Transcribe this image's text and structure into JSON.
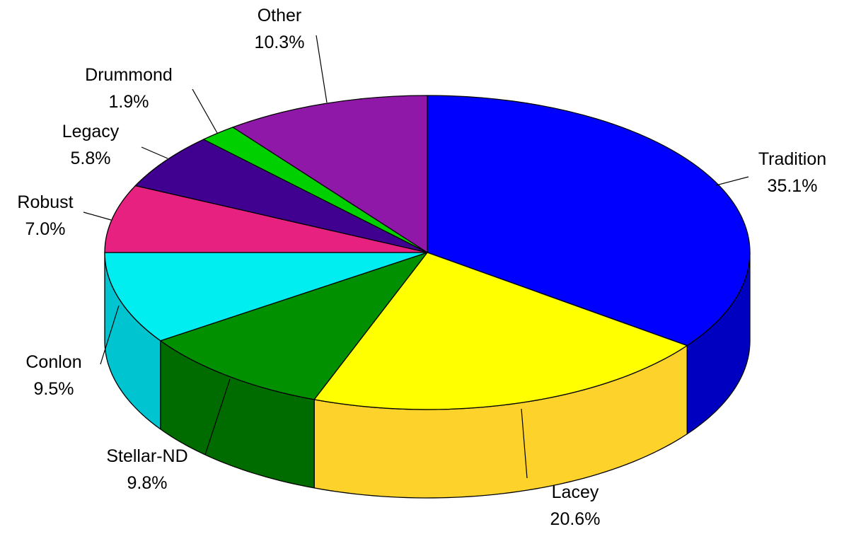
{
  "chart_data": {
    "type": "pie",
    "style": "3d",
    "start": "12 o'clock, clockwise",
    "slices": [
      {
        "name": "Tradition",
        "pct_label": "35.1%",
        "value": 35.1,
        "color": "#0000ff",
        "side_color": "#0000c0"
      },
      {
        "name": "Lacey",
        "pct_label": "20.6%",
        "value": 20.6,
        "color": "#ffff00",
        "side_color": "#fdd22b"
      },
      {
        "name": "Stellar-ND",
        "pct_label": "9.8%",
        "value": 9.8,
        "color": "#009000",
        "side_color": "#006c00"
      },
      {
        "name": "Conlon",
        "pct_label": "9.5%",
        "value": 9.5,
        "color": "#00eef0",
        "side_color": "#00c5d0"
      },
      {
        "name": "Robust",
        "pct_label": "7.0%",
        "value": 7.0,
        "color": "#e6217f",
        "side_color": "#b8165f"
      },
      {
        "name": "Legacy",
        "pct_label": "5.8%",
        "value": 5.8,
        "color": "#400090",
        "side_color": "#2c0068"
      },
      {
        "name": "Drummond",
        "pct_label": "1.9%",
        "value": 1.9,
        "color": "#00d000",
        "side_color": "#009c00"
      },
      {
        "name": "Other",
        "pct_label": "10.3%",
        "value": 10.3,
        "color": "#9018a8",
        "side_color": "#6a1080"
      }
    ]
  }
}
